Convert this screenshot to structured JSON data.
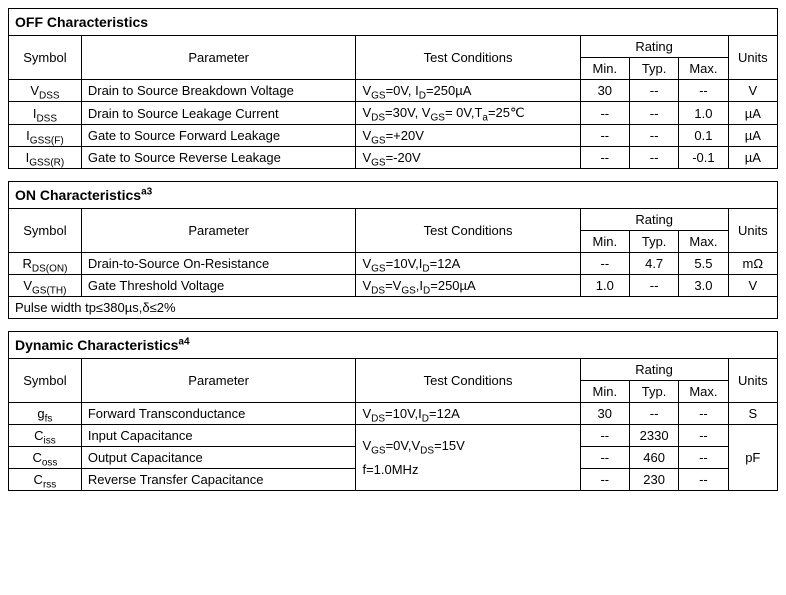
{
  "cols": {
    "symbol": "Symbol",
    "parameter": "Parameter",
    "conditions": "Test Conditions",
    "rating": "Rating",
    "min": "Min.",
    "typ": "Typ.",
    "max": "Max.",
    "units": "Units"
  },
  "off": {
    "title": "OFF Characteristics",
    "rows": [
      {
        "sym": "V<sub>DSS</sub>",
        "param": "Drain to Source Breakdown Voltage",
        "cond": "V<sub>GS</sub>=0V, I<sub>D</sub>=250µA",
        "min": "30",
        "typ": "--",
        "max": "--",
        "units": "V"
      },
      {
        "sym": "I<sub>DSS</sub>",
        "param": "Drain to Source Leakage Current",
        "cond": "V<sub>DS</sub>=30V, V<sub>GS</sub>= 0V,T<sub>a</sub>=25℃",
        "min": "--",
        "typ": "--",
        "max": "1.0",
        "units": "µA"
      },
      {
        "sym": "I<sub>GSS(F)</sub>",
        "param": "Gate to Source Forward Leakage",
        "cond": "V<sub>GS</sub>=+20V",
        "min": "--",
        "typ": "--",
        "max": "0.1",
        "units": "µA"
      },
      {
        "sym": "I<sub>GSS(R)</sub>",
        "param": "Gate to Source Reverse Leakage",
        "cond": "V<sub>GS</sub>=-20V",
        "min": "--",
        "typ": "--",
        "max": "-0.1",
        "units": "µA"
      }
    ]
  },
  "on": {
    "title": "ON Characteristics",
    "title_note": "a3",
    "rows": [
      {
        "sym": "R<sub>DS(ON)</sub>",
        "param": "Drain-to-Source On-Resistance",
        "cond": "V<sub>GS</sub>=10V,I<sub>D</sub>=12A",
        "min": "--",
        "typ": "4.7",
        "max": "5.5",
        "units": "mΩ"
      },
      {
        "sym": "V<sub>GS(TH)</sub>",
        "param": "Gate Threshold Voltage",
        "cond": "V<sub>DS</sub>=V<sub>GS</sub>,I<sub>D</sub>=250µA",
        "min": "1.0",
        "typ": "--",
        "max": "3.0",
        "units": "V"
      }
    ],
    "footnote": "Pulse width tp≤380µs,δ≤2%"
  },
  "dyn": {
    "title": "Dynamic Characteristics",
    "title_note": "a4",
    "rows": [
      {
        "sym": "g<sub>fs</sub>",
        "param": "Forward Transconductance",
        "cond": "V<sub>DS</sub>=10V,I<sub>D</sub>=12A",
        "min": "30",
        "typ": "--",
        "max": "--",
        "units": "S"
      },
      {
        "sym": "C<sub>iss</sub>",
        "param": "Input Capacitance",
        "min": "--",
        "typ": "2330",
        "max": "--"
      },
      {
        "sym": "C<sub>oss</sub>",
        "param": "Output Capacitance",
        "min": "--",
        "typ": "460",
        "max": "--"
      },
      {
        "sym": "C<sub>rss</sub>",
        "param": "Reverse Transfer Capacitance",
        "min": "--",
        "typ": "230",
        "max": "--"
      }
    ],
    "cap_cond": "V<sub>GS</sub>=0V,V<sub>DS</sub>=15V<br>f=1.0MHz",
    "cap_units": "pF"
  }
}
